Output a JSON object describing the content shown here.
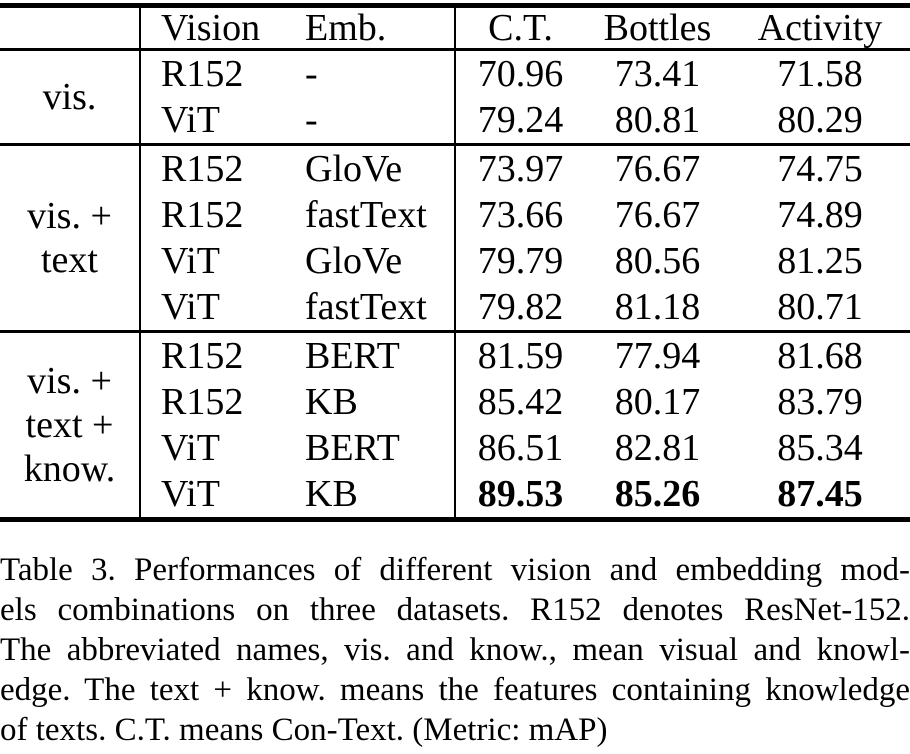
{
  "table": {
    "header": {
      "group": "",
      "vision": "Vision",
      "emb": "Emb.",
      "ct": "C.T.",
      "bottles": "Bottles",
      "activity": "Activity"
    },
    "groups": [
      {
        "label": "vis.",
        "rows": [
          {
            "vision": "R152",
            "emb": "-",
            "values": [
              "70.96",
              "73.41",
              "71.58"
            ],
            "bold": false
          },
          {
            "vision": "ViT",
            "emb": "-",
            "values": [
              "79.24",
              "80.81",
              "80.29"
            ],
            "bold": false
          }
        ]
      },
      {
        "label": "vis. +\ntext",
        "rows": [
          {
            "vision": "R152",
            "emb": "GloVe",
            "values": [
              "73.97",
              "76.67",
              "74.75"
            ],
            "bold": false
          },
          {
            "vision": "R152",
            "emb": "fastText",
            "values": [
              "73.66",
              "76.67",
              "74.89"
            ],
            "bold": false
          },
          {
            "vision": "ViT",
            "emb": "GloVe",
            "values": [
              "79.79",
              "80.56",
              "81.25"
            ],
            "bold": false
          },
          {
            "vision": "ViT",
            "emb": "fastText",
            "values": [
              "79.82",
              "81.18",
              "80.71"
            ],
            "bold": false
          }
        ]
      },
      {
        "label": "vis. +\ntext +\nknow.",
        "rows": [
          {
            "vision": "R152",
            "emb": "BERT",
            "values": [
              "81.59",
              "77.94",
              "81.68"
            ],
            "bold": false
          },
          {
            "vision": "R152",
            "emb": "KB",
            "values": [
              "85.42",
              "80.17",
              "83.79"
            ],
            "bold": false
          },
          {
            "vision": "ViT",
            "emb": "BERT",
            "values": [
              "86.51",
              "82.81",
              "85.34"
            ],
            "bold": false
          },
          {
            "vision": "ViT",
            "emb": "KB",
            "values": [
              "89.53",
              "85.26",
              "87.45"
            ],
            "bold": true
          }
        ]
      }
    ]
  },
  "caption": {
    "lines": [
      "Table 3. Performances of different vision and embedding mod-",
      "els combinations on three datasets. R152 denotes ResNet-152.",
      "The abbreviated names, vis. and know., mean visual and knowl-",
      "edge. The text + know. means the features containing knowledge",
      "of texts. C.T. means Con-Text. (Metric: mAP)"
    ]
  }
}
